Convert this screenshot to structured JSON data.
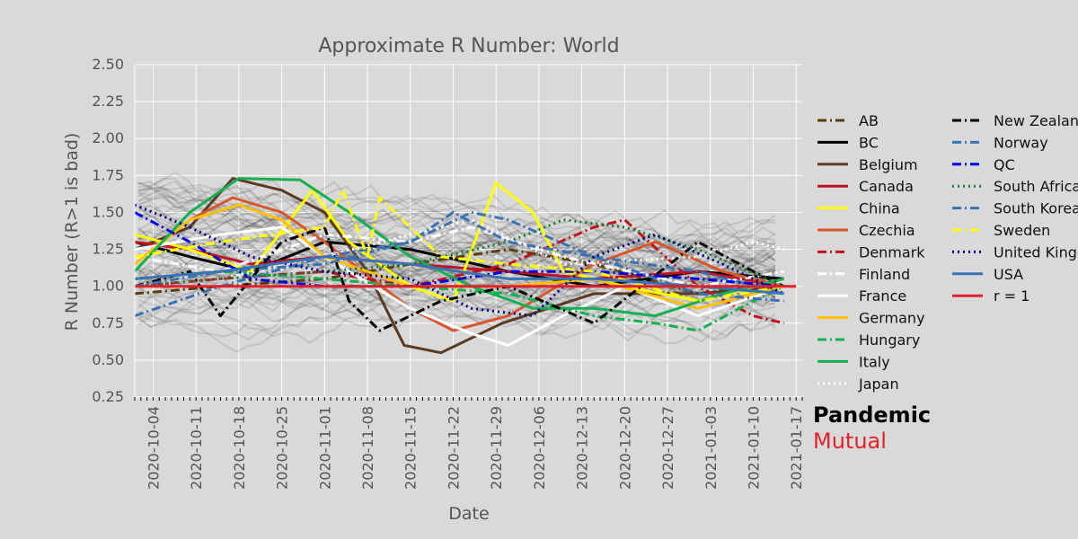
{
  "chart_data": {
    "type": "line",
    "title": "Approximate R Number: World",
    "xlabel": "Date",
    "ylabel": "R Number (R>1 is bad)",
    "ylim": [
      0.25,
      2.5
    ],
    "yticks": [
      "0.25",
      "0.50",
      "0.75",
      "1.00",
      "1.25",
      "1.50",
      "1.75",
      "2.00",
      "2.25",
      "2.50"
    ],
    "xlim": [
      "2020-10-01",
      "2021-01-18"
    ],
    "xticks": [
      "2020-10-04",
      "2020-10-11",
      "2020-10-18",
      "2020-10-25",
      "2020-11-01",
      "2020-11-08",
      "2020-11-15",
      "2020-11-22",
      "2020-11-29",
      "2020-12-06",
      "2020-12-13",
      "2020-12-20",
      "2020-12-27",
      "2021-01-03",
      "2021-01-10",
      "2021-01-17"
    ],
    "grid": true,
    "legend_position": "right",
    "background_series": "many unlabeled grey country traces",
    "series": [
      {
        "name": "AB",
        "color": "#5a3d0a",
        "dash": "dashdot",
        "points": [
          [
            "2020-10-01",
            0.95
          ],
          [
            "2020-10-15",
            1.0
          ],
          [
            "2020-11-01",
            1.05
          ],
          [
            "2020-11-15",
            1.15
          ],
          [
            "2020-12-01",
            1.25
          ],
          [
            "2020-12-15",
            1.15
          ],
          [
            "2021-01-01",
            0.95
          ],
          [
            "2021-01-10",
            1.0
          ],
          [
            "2021-01-15",
            1.05
          ]
        ]
      },
      {
        "name": "BC",
        "color": "#000000",
        "dash": "solid",
        "points": [
          [
            "2020-10-01",
            1.3
          ],
          [
            "2020-10-10",
            1.2
          ],
          [
            "2020-10-20",
            1.1
          ],
          [
            "2020-11-01",
            1.3
          ],
          [
            "2020-11-15",
            1.25
          ],
          [
            "2020-12-01",
            1.1
          ],
          [
            "2020-12-15",
            1.0
          ],
          [
            "2021-01-01",
            1.1
          ],
          [
            "2021-01-15",
            1.05
          ]
        ]
      },
      {
        "name": "Belgium",
        "color": "#5c3a22",
        "dash": "solid",
        "points": [
          [
            "2020-10-01",
            1.25
          ],
          [
            "2020-10-10",
            1.4
          ],
          [
            "2020-10-17",
            1.73
          ],
          [
            "2020-10-25",
            1.65
          ],
          [
            "2020-11-01",
            1.5
          ],
          [
            "2020-11-08",
            1.1
          ],
          [
            "2020-11-14",
            0.6
          ],
          [
            "2020-11-20",
            0.55
          ],
          [
            "2020-11-30",
            0.75
          ],
          [
            "2020-12-15",
            0.95
          ],
          [
            "2021-01-01",
            0.95
          ],
          [
            "2021-01-15",
            1.0
          ]
        ]
      },
      {
        "name": "Canada",
        "color": "#c0121c",
        "dash": "solid",
        "points": [
          [
            "2020-10-01",
            1.3
          ],
          [
            "2020-10-10",
            1.25
          ],
          [
            "2020-10-20",
            1.15
          ],
          [
            "2020-11-01",
            1.2
          ],
          [
            "2020-11-15",
            1.15
          ],
          [
            "2020-12-01",
            1.1
          ],
          [
            "2020-12-15",
            1.05
          ],
          [
            "2021-01-01",
            1.1
          ],
          [
            "2021-01-15",
            1.0
          ]
        ]
      },
      {
        "name": "China",
        "color": "#ffff00",
        "dash": "solid",
        "points": [
          [
            "2020-10-01",
            1.35
          ],
          [
            "2020-10-10",
            1.25
          ],
          [
            "2020-10-20",
            1.1
          ],
          [
            "2020-10-30",
            1.65
          ],
          [
            "2020-11-05",
            1.3
          ],
          [
            "2020-11-15",
            1.0
          ],
          [
            "2020-11-22",
            0.9
          ],
          [
            "2020-11-29",
            1.7
          ],
          [
            "2020-12-05",
            1.5
          ],
          [
            "2020-12-10",
            1.1
          ],
          [
            "2020-12-20",
            1.0
          ],
          [
            "2021-01-01",
            0.9
          ],
          [
            "2021-01-15",
            1.05
          ]
        ]
      },
      {
        "name": "Czechia",
        "color": "#d9562b",
        "dash": "solid",
        "points": [
          [
            "2020-10-01",
            1.15
          ],
          [
            "2020-10-10",
            1.45
          ],
          [
            "2020-10-17",
            1.6
          ],
          [
            "2020-10-25",
            1.5
          ],
          [
            "2020-11-01",
            1.3
          ],
          [
            "2020-11-15",
            0.85
          ],
          [
            "2020-11-22",
            0.7
          ],
          [
            "2020-12-01",
            0.8
          ],
          [
            "2020-12-15",
            1.15
          ],
          [
            "2020-12-25",
            1.3
          ],
          [
            "2021-01-05",
            1.1
          ],
          [
            "2021-01-15",
            1.0
          ]
        ]
      },
      {
        "name": "Denmark",
        "color": "#c0121c",
        "dash": "dashdot",
        "points": [
          [
            "2020-10-01",
            1.0
          ],
          [
            "2020-10-15",
            1.05
          ],
          [
            "2020-11-01",
            1.1
          ],
          [
            "2020-11-15",
            1.0
          ],
          [
            "2020-12-01",
            1.15
          ],
          [
            "2020-12-15",
            1.4
          ],
          [
            "2020-12-20",
            1.45
          ],
          [
            "2021-01-01",
            1.0
          ],
          [
            "2021-01-10",
            0.8
          ],
          [
            "2021-01-15",
            0.75
          ]
        ]
      },
      {
        "name": "Finland",
        "color": "#ffffff",
        "dash": "dashdot",
        "points": [
          [
            "2020-10-01",
            1.2
          ],
          [
            "2020-10-15",
            1.1
          ],
          [
            "2020-11-01",
            1.35
          ],
          [
            "2020-11-15",
            1.3
          ],
          [
            "2020-11-25",
            1.4
          ],
          [
            "2020-12-10",
            1.2
          ],
          [
            "2021-01-01",
            1.0
          ],
          [
            "2021-01-15",
            1.1
          ]
        ]
      },
      {
        "name": "France",
        "color": "#ffffff",
        "dash": "solid",
        "points": [
          [
            "2020-10-01",
            1.25
          ],
          [
            "2020-10-15",
            1.35
          ],
          [
            "2020-10-25",
            1.4
          ],
          [
            "2020-11-01",
            1.2
          ],
          [
            "2020-11-15",
            0.85
          ],
          [
            "2020-11-25",
            0.68
          ],
          [
            "2020-12-01",
            0.6
          ],
          [
            "2020-12-10",
            0.8
          ],
          [
            "2020-12-20",
            1.0
          ],
          [
            "2021-01-01",
            0.8
          ],
          [
            "2021-01-15",
            1.0
          ]
        ]
      },
      {
        "name": "Germany",
        "color": "#ffc000",
        "dash": "solid",
        "points": [
          [
            "2020-10-01",
            1.15
          ],
          [
            "2020-10-10",
            1.45
          ],
          [
            "2020-10-18",
            1.55
          ],
          [
            "2020-10-25",
            1.45
          ],
          [
            "2020-11-01",
            1.2
          ],
          [
            "2020-11-15",
            1.0
          ],
          [
            "2020-12-01",
            1.0
          ],
          [
            "2020-12-15",
            1.05
          ],
          [
            "2021-01-01",
            0.85
          ],
          [
            "2021-01-15",
            1.0
          ]
        ]
      },
      {
        "name": "Hungary",
        "color": "#16b052",
        "dash": "dashdot",
        "points": [
          [
            "2020-10-01",
            1.05
          ],
          [
            "2020-10-15",
            1.1
          ],
          [
            "2020-11-01",
            1.05
          ],
          [
            "2020-11-15",
            1.0
          ],
          [
            "2020-12-01",
            0.95
          ],
          [
            "2020-12-15",
            0.8
          ],
          [
            "2020-12-25",
            0.75
          ],
          [
            "2021-01-01",
            0.7
          ],
          [
            "2021-01-10",
            0.9
          ],
          [
            "2021-01-15",
            1.0
          ]
        ]
      },
      {
        "name": "Italy",
        "color": "#16b052",
        "dash": "solid",
        "points": [
          [
            "2020-10-01",
            1.1
          ],
          [
            "2020-10-10",
            1.5
          ],
          [
            "2020-10-18",
            1.73
          ],
          [
            "2020-10-28",
            1.72
          ],
          [
            "2020-11-05",
            1.5
          ],
          [
            "2020-11-15",
            1.2
          ],
          [
            "2020-11-25",
            1.0
          ],
          [
            "2020-12-05",
            0.85
          ],
          [
            "2020-12-15",
            0.85
          ],
          [
            "2020-12-25",
            0.8
          ],
          [
            "2021-01-05",
            0.95
          ],
          [
            "2021-01-15",
            1.05
          ]
        ]
      },
      {
        "name": "Japan",
        "color": "#ffffff",
        "dash": "dot",
        "points": [
          [
            "2020-10-01",
            1.0
          ],
          [
            "2020-10-15",
            1.05
          ],
          [
            "2020-11-01",
            1.2
          ],
          [
            "2020-11-15",
            1.35
          ],
          [
            "2020-11-25",
            1.45
          ],
          [
            "2020-12-10",
            1.15
          ],
          [
            "2021-01-01",
            1.2
          ],
          [
            "2021-01-10",
            1.3
          ],
          [
            "2021-01-15",
            1.25
          ]
        ]
      },
      {
        "name": "New Zealand",
        "color": "#000000",
        "dash": "dashdot",
        "points": [
          [
            "2020-10-01",
            1.0
          ],
          [
            "2020-10-10",
            1.1
          ],
          [
            "2020-10-15",
            0.8
          ],
          [
            "2020-10-25",
            1.3
          ],
          [
            "2020-11-01",
            1.4
          ],
          [
            "2020-11-05",
            0.9
          ],
          [
            "2020-11-10",
            0.7
          ],
          [
            "2020-11-20",
            0.9
          ],
          [
            "2020-12-01",
            1.0
          ],
          [
            "2020-12-15",
            0.75
          ],
          [
            "2021-01-01",
            1.3
          ],
          [
            "2021-01-10",
            1.1
          ],
          [
            "2021-01-15",
            1.0
          ]
        ]
      },
      {
        "name": "Norway",
        "color": "#3a73b3",
        "dash": "dashdot",
        "points": [
          [
            "2020-10-01",
            0.8
          ],
          [
            "2020-10-15",
            1.0
          ],
          [
            "2020-11-01",
            1.2
          ],
          [
            "2020-11-15",
            1.3
          ],
          [
            "2020-11-25",
            1.5
          ],
          [
            "2020-12-01",
            1.45
          ],
          [
            "2020-12-15",
            1.2
          ],
          [
            "2021-01-01",
            1.1
          ],
          [
            "2021-01-15",
            0.95
          ]
        ]
      },
      {
        "name": "QC",
        "color": "#0000e0",
        "dash": "dashdot",
        "points": [
          [
            "2020-10-01",
            1.5
          ],
          [
            "2020-10-10",
            1.3
          ],
          [
            "2020-10-20",
            1.05
          ],
          [
            "2020-11-01",
            1.0
          ],
          [
            "2020-11-15",
            1.0
          ],
          [
            "2020-12-01",
            1.1
          ],
          [
            "2020-12-15",
            1.1
          ],
          [
            "2021-01-01",
            1.05
          ],
          [
            "2021-01-15",
            1.0
          ]
        ]
      },
      {
        "name": "South Africa",
        "color": "#1a7a3a",
        "dash": "dot",
        "points": [
          [
            "2020-10-01",
            1.0
          ],
          [
            "2020-10-15",
            1.05
          ],
          [
            "2020-11-01",
            1.1
          ],
          [
            "2020-11-15",
            1.15
          ],
          [
            "2020-12-01",
            1.3
          ],
          [
            "2020-12-10",
            1.45
          ],
          [
            "2020-12-20",
            1.4
          ],
          [
            "2021-01-01",
            1.25
          ],
          [
            "2021-01-15",
            1.0
          ]
        ]
      },
      {
        "name": "South Korea",
        "color": "#3a73b3",
        "dash": "dashdot",
        "points": [
          [
            "2020-10-01",
            1.0
          ],
          [
            "2020-10-15",
            1.1
          ],
          [
            "2020-11-01",
            1.15
          ],
          [
            "2020-11-15",
            1.3
          ],
          [
            "2020-11-22",
            1.5
          ],
          [
            "2020-12-01",
            1.3
          ],
          [
            "2020-12-15",
            1.2
          ],
          [
            "2021-01-01",
            0.95
          ],
          [
            "2021-01-15",
            0.9
          ]
        ]
      },
      {
        "name": "Sweden",
        "color": "#ffff00",
        "dash": "dashdot",
        "points": [
          [
            "2020-10-01",
            1.2
          ],
          [
            "2020-10-15",
            1.3
          ],
          [
            "2020-11-01",
            1.4
          ],
          [
            "2020-11-04",
            1.65
          ],
          [
            "2020-11-08",
            1.2
          ],
          [
            "2020-11-10",
            1.6
          ],
          [
            "2020-11-20",
            1.2
          ],
          [
            "2020-12-01",
            1.15
          ],
          [
            "2020-12-15",
            1.1
          ],
          [
            "2021-01-01",
            0.9
          ],
          [
            "2021-01-15",
            1.0
          ]
        ]
      },
      {
        "name": "United Kingdom",
        "color": "#000080",
        "dash": "dot",
        "points": [
          [
            "2020-10-01",
            1.55
          ],
          [
            "2020-10-10",
            1.4
          ],
          [
            "2020-10-20",
            1.2
          ],
          [
            "2020-11-01",
            1.1
          ],
          [
            "2020-11-15",
            1.05
          ],
          [
            "2020-11-25",
            0.85
          ],
          [
            "2020-12-05",
            0.8
          ],
          [
            "2020-12-15",
            1.2
          ],
          [
            "2020-12-25",
            1.35
          ],
          [
            "2021-01-05",
            1.15
          ],
          [
            "2021-01-15",
            0.95
          ]
        ]
      },
      {
        "name": "USA",
        "color": "#3a73b3",
        "dash": "solid",
        "points": [
          [
            "2020-10-01",
            1.05
          ],
          [
            "2020-10-15",
            1.1
          ],
          [
            "2020-11-01",
            1.2
          ],
          [
            "2020-11-15",
            1.15
          ],
          [
            "2020-12-01",
            1.05
          ],
          [
            "2020-12-15",
            1.05
          ],
          [
            "2021-01-01",
            1.0
          ],
          [
            "2021-01-15",
            0.95
          ]
        ]
      },
      {
        "name": "r = 1",
        "color": "#e0202a",
        "dash": "solid",
        "points": [
          [
            "2020-10-01",
            1.0
          ],
          [
            "2021-01-17",
            1.0
          ]
        ]
      }
    ]
  },
  "brand": {
    "line1": "Pandemic",
    "line2": "Mutual"
  }
}
